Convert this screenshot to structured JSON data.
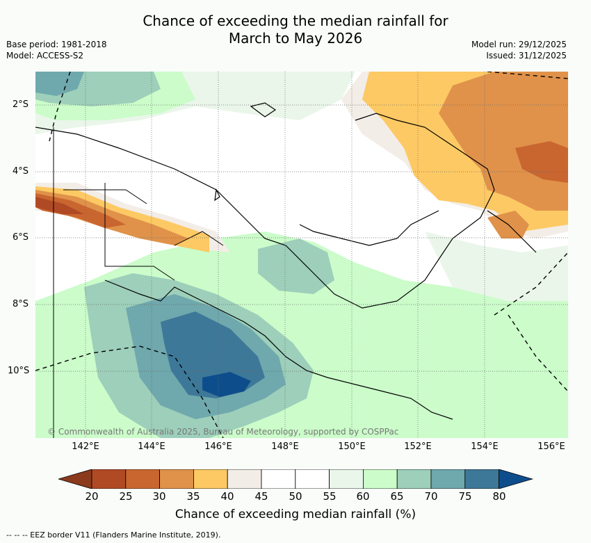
{
  "title": {
    "line1": "Chance of exceeding the median rainfall for",
    "line2": "March to May 2026"
  },
  "meta": {
    "base_period": "Base period: 1981-2018",
    "model": "Model: ACCESS-S2",
    "model_run": "Model run: 29/12/2025",
    "issued": "Issued: 31/12/2025"
  },
  "map": {
    "lat_labels": [
      "2°S",
      "4°S",
      "6°S",
      "8°S",
      "10°S"
    ],
    "lon_labels": [
      "142°E",
      "144°E",
      "146°E",
      "148°E",
      "150°E",
      "152°E",
      "154°E",
      "156°E"
    ],
    "copyright": "© Commonwealth of Australia 2025, Bureau of Meteorology, supported by COSPPac"
  },
  "colorbar": {
    "ticks": [
      "20",
      "25",
      "30",
      "35",
      "40",
      "45",
      "50",
      "55",
      "60",
      "65",
      "70",
      "75",
      "80"
    ],
    "label": "Chance of exceeding median rainfall (%)",
    "colors": [
      "#8c3a1c",
      "#b04a25",
      "#c96630",
      "#e0924a",
      "#fdc964",
      "#f3ede8",
      "#ffffff",
      "#ffffff",
      "#eaf6ea",
      "#cbfcca",
      "#9dcfba",
      "#6fa8ad",
      "#3d7898",
      "#0e4d8c"
    ]
  },
  "legend": {
    "eez": "--  --  -- EEZ border V11 (Flanders Marine Institute, 2019)."
  }
}
